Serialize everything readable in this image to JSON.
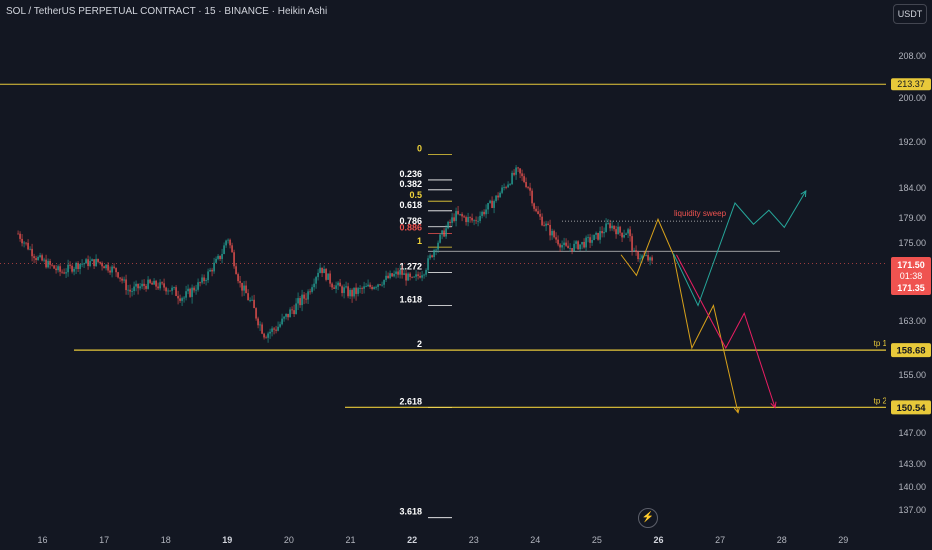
{
  "header": {
    "title": "SOL / TetherUS PERPETUAL CONTRACT · 15 · BINANCE · Heikin Ashi",
    "currency_button": "USDT"
  },
  "colors": {
    "background": "#131722",
    "up_candle": "#26a69a",
    "down_candle": "#ef5350",
    "fib_gold": "#f0d43a",
    "fib_red": "#ef5350",
    "projection_green": "#26a69a",
    "projection_orange": "#d8a21b",
    "projection_red": "#e91e63",
    "horizontal_line": "#e8c93a"
  },
  "icons": {
    "bottom_button": "lightning-icon"
  },
  "chart_data": {
    "type": "candlestick",
    "style": "Heikin Ashi",
    "symbol": "SOLUSDT.P",
    "timeframe": "15",
    "x_tick_labels": [
      "16",
      "17",
      "18",
      "19",
      "20",
      "21",
      "22",
      "23",
      "24",
      "25",
      "26",
      "27",
      "28",
      "29"
    ],
    "y_tick_labels": [
      "208.00",
      "200.00",
      "192.00",
      "184.00",
      "179.00",
      "175.00",
      "167.00",
      "163.00",
      "155.00",
      "147.00",
      "143.00",
      "140.00",
      "137.00"
    ],
    "y_ticks": [
      208,
      200,
      192,
      184,
      179,
      175,
      167,
      163,
      155,
      147,
      143,
      140,
      137
    ],
    "ylim": [
      134,
      217
    ],
    "price_path": [
      [
        15.6,
        176.5
      ],
      [
        15.9,
        172.5
      ],
      [
        16.3,
        170.0
      ],
      [
        16.6,
        171.5
      ],
      [
        16.9,
        171.8
      ],
      [
        17.2,
        170.2
      ],
      [
        17.4,
        166.8
      ],
      [
        17.7,
        168.0
      ],
      [
        18.0,
        167.5
      ],
      [
        18.3,
        166.0
      ],
      [
        18.6,
        168.5
      ],
      [
        18.9,
        173.0
      ],
      [
        19.0,
        176.2
      ],
      [
        19.2,
        168.0
      ],
      [
        19.4,
        165.0
      ],
      [
        19.6,
        161.0
      ],
      [
        19.8,
        162.0
      ],
      [
        20.0,
        164.0
      ],
      [
        20.3,
        166.5
      ],
      [
        20.5,
        171.0
      ],
      [
        20.7,
        168.0
      ],
      [
        21.0,
        166.5
      ],
      [
        21.3,
        167.5
      ],
      [
        21.6,
        169.0
      ],
      [
        21.8,
        170.0
      ],
      [
        22.0,
        168.5
      ],
      [
        22.2,
        170.5
      ],
      [
        22.4,
        175.0
      ],
      [
        22.7,
        179.5
      ],
      [
        23.0,
        178.5
      ],
      [
        23.3,
        181.5
      ],
      [
        23.7,
        187.0
      ],
      [
        23.9,
        184.0
      ],
      [
        24.0,
        180.0
      ],
      [
        24.3,
        176.0
      ],
      [
        24.5,
        174.0
      ],
      [
        24.8,
        175.0
      ],
      [
        25.0,
        176.0
      ],
      [
        25.2,
        178.0
      ],
      [
        25.4,
        176.5
      ],
      [
        25.5,
        177.0
      ],
      [
        25.6,
        173.0
      ],
      [
        25.8,
        172.5
      ],
      [
        25.9,
        171.5
      ]
    ],
    "current_price_labels": [
      "171.50",
      "01:38",
      "171.35"
    ],
    "top_price_label": "213.37",
    "fibonacci": [
      {
        "label": "0",
        "value": 189.8
      },
      {
        "label": "0.236",
        "value": 185.4
      },
      {
        "label": "0.382",
        "value": 183.7
      },
      {
        "label": "0.5",
        "value": 181.8
      },
      {
        "label": "0.618",
        "value": 180.2
      },
      {
        "label": "0.786",
        "value": 177.6
      },
      {
        "label": "0.886",
        "value": 176.5
      },
      {
        "label": "1",
        "value": 174.3
      },
      {
        "label": "1.272",
        "value": 170.0
      },
      {
        "label": "1.618",
        "value": 165.0
      },
      {
        "label": "2",
        "value": 158.7
      },
      {
        "label": "2.618",
        "value": 150.5
      },
      {
        "label": "3.618",
        "value": 136.0
      }
    ],
    "horizontal_levels": [
      {
        "value": 213.37,
        "label": "213.37"
      },
      {
        "value": 158.68,
        "label": "158.68",
        "tag": "tp 1"
      },
      {
        "value": 150.54,
        "label": "150.54",
        "tag": "tp 2"
      }
    ],
    "annotation": {
      "text": "liquidity sweep",
      "value": 178.5
    },
    "dotted_level": {
      "value": 173.6
    },
    "projections": {
      "green": [
        [
          26.25,
          173.2
        ],
        [
          26.65,
          165.0
        ],
        [
          27.25,
          181.5
        ],
        [
          27.55,
          178.0
        ],
        [
          27.8,
          180.3
        ],
        [
          28.05,
          177.5
        ],
        [
          28.4,
          183.5
        ]
      ],
      "orange": [
        [
          25.4,
          173.0
        ],
        [
          25.65,
          169.5
        ],
        [
          26.0,
          178.8
        ],
        [
          26.25,
          173.0
        ],
        [
          26.55,
          159.0
        ],
        [
          26.9,
          165.0
        ],
        [
          27.3,
          149.8
        ]
      ],
      "red": [
        [
          26.3,
          173.0
        ],
        [
          27.1,
          159.0
        ],
        [
          27.4,
          164.0
        ],
        [
          27.9,
          150.5
        ]
      ]
    }
  }
}
